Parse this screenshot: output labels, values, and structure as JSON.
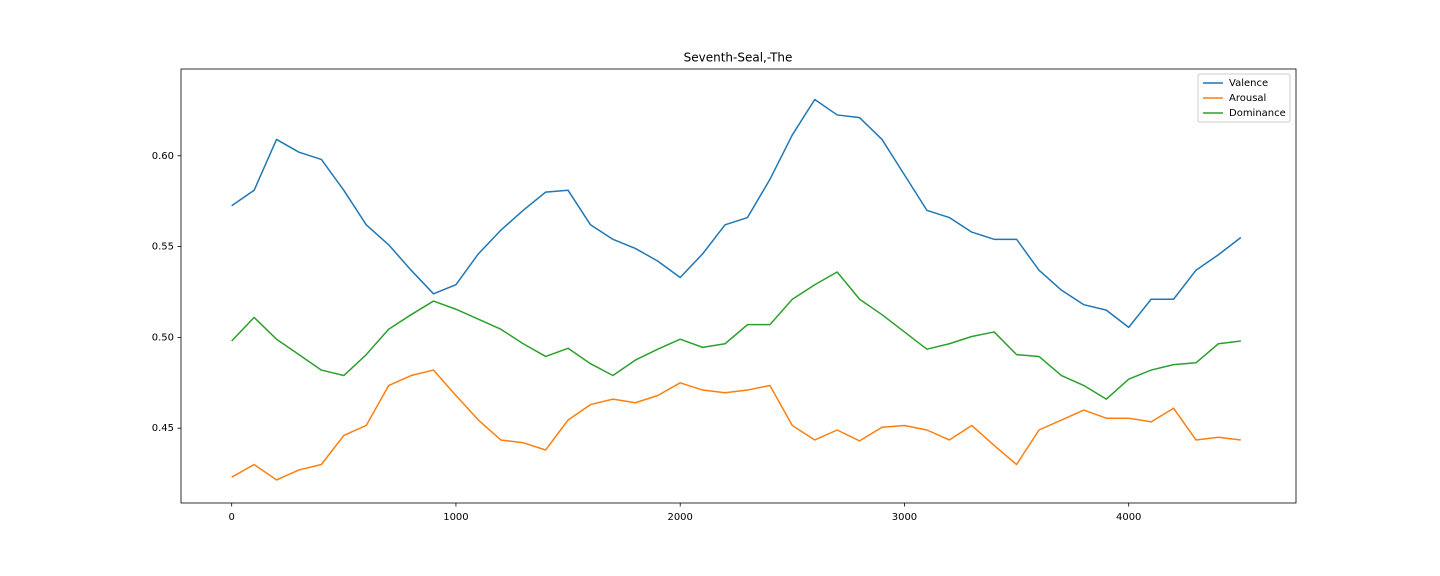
{
  "chart_data": {
    "type": "line",
    "title": "Seventh-Seal,-The",
    "x": [
      0,
      100,
      200,
      300,
      400,
      500,
      600,
      700,
      800,
      900,
      1000,
      1100,
      1200,
      1300,
      1400,
      1500,
      1600,
      1700,
      1800,
      1900,
      2000,
      2100,
      2200,
      2300,
      2400,
      2500,
      2600,
      2700,
      2800,
      2900,
      3000,
      3100,
      3200,
      3300,
      3400,
      3500,
      3600,
      3700,
      3800,
      3900,
      4000,
      4100,
      4200,
      4300,
      4400,
      4500
    ],
    "series": [
      {
        "name": "Valence",
        "color": "#1f77b4",
        "values": [
          0.5725,
          0.581,
          0.609,
          0.602,
          0.598,
          0.581,
          0.562,
          0.551,
          0.537,
          0.524,
          0.529,
          0.546,
          0.559,
          0.57,
          0.58,
          0.581,
          0.562,
          0.554,
          0.549,
          0.542,
          0.533,
          0.546,
          0.562,
          0.566,
          0.587,
          0.6115,
          0.631,
          0.6225,
          0.621,
          0.609,
          0.5895,
          0.57,
          0.566,
          0.558,
          0.554,
          0.554,
          0.537,
          0.526,
          0.518,
          0.515,
          0.5055,
          0.521,
          0.521,
          0.537,
          0.5455,
          0.555
        ]
      },
      {
        "name": "Arousal",
        "color": "#ff7f0e",
        "values": [
          0.423,
          0.43,
          0.4215,
          0.427,
          0.43,
          0.446,
          0.4515,
          0.4735,
          0.479,
          0.482,
          0.468,
          0.4545,
          0.4435,
          0.442,
          0.438,
          0.4545,
          0.463,
          0.466,
          0.464,
          0.468,
          0.475,
          0.471,
          0.4695,
          0.471,
          0.4735,
          0.4515,
          0.4435,
          0.449,
          0.443,
          0.4505,
          0.4515,
          0.449,
          0.4435,
          0.4515,
          0.4405,
          0.43,
          0.449,
          0.4545,
          0.46,
          0.4555,
          0.4555,
          0.4535,
          0.461,
          0.4435,
          0.445,
          0.4435
        ]
      },
      {
        "name": "Dominance",
        "color": "#2ca02c",
        "values": [
          0.498,
          0.511,
          0.499,
          0.4905,
          0.482,
          0.479,
          0.4905,
          0.5045,
          0.5125,
          0.52,
          0.5155,
          0.51,
          0.5045,
          0.4965,
          0.4895,
          0.494,
          0.4855,
          0.479,
          0.4875,
          0.4935,
          0.499,
          0.4945,
          0.4965,
          0.507,
          0.507,
          0.521,
          0.529,
          0.536,
          0.521,
          0.5125,
          0.503,
          0.4935,
          0.4965,
          0.5005,
          0.503,
          0.4905,
          0.4895,
          0.479,
          0.4735,
          0.466,
          0.477,
          0.482,
          0.485,
          0.486,
          0.4965,
          0.498
        ]
      }
    ],
    "xlim": [
      -226,
      4746
    ],
    "ylim": [
      0.4088,
      0.6478
    ],
    "xticks": [
      0,
      1000,
      2000,
      3000,
      4000
    ],
    "yticks": [
      0.45,
      {
        "value": 0.5,
        "label": "0.50"
      },
      0.55,
      {
        "value": 0.6,
        "label": "0.60"
      }
    ],
    "legend": "upper right"
  }
}
